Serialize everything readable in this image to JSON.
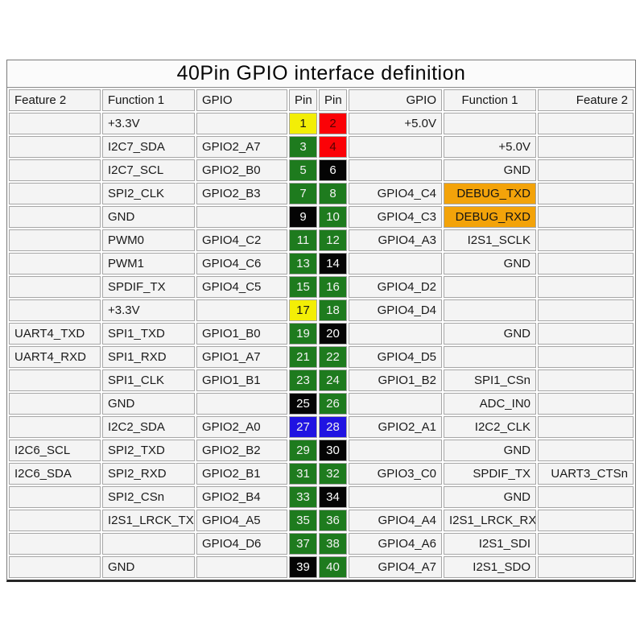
{
  "title": "40Pin GPIO interface definition",
  "header": {
    "feature2_left": "Feature 2",
    "function1_left": "Function 1",
    "gpio_left": "GPIO",
    "pin_left": "Pin",
    "pin_right": "Pin",
    "gpio_right": "GPIO",
    "function1_right": "Function 1",
    "feature2_right": "Feature 2"
  },
  "colors": {
    "cell_bg": "#f4f4f4",
    "grid_line": "#a6a6a6",
    "outer_border": "#7a7a7a",
    "pin_green": {
      "bg": "#1e7b1e",
      "fg": "#f2f2f2"
    },
    "pin_red": {
      "bg": "#fb0207",
      "fg": "#560202"
    },
    "pin_yellow": {
      "bg": "#f3ee06",
      "fg": "#141414"
    },
    "pin_black": {
      "bg": "#040404",
      "fg": "#ffffff"
    },
    "pin_blue": {
      "bg": "#2013e2",
      "fg": "#eeeeee"
    },
    "debug_highlight": {
      "bg": "#f3a30a",
      "fg": "#141414"
    }
  },
  "legend_meaning": {
    "yellow": "+3.3V power",
    "red": "+5.0V power",
    "black": "GND",
    "green": "GPIO",
    "blue": "I2C2",
    "orange": "DEBUG UART"
  },
  "rows": [
    {
      "left": {
        "feature2": "",
        "function1": "+3.3V",
        "gpio": "",
        "pin": "1",
        "color": "yellow"
      },
      "right": {
        "pin": "2",
        "color": "red",
        "gpio": "+5.0V",
        "function1": "",
        "highlight": false,
        "feature2": ""
      }
    },
    {
      "left": {
        "feature2": "",
        "function1": "I2C7_SDA",
        "gpio": "GPIO2_A7",
        "pin": "3",
        "color": "green"
      },
      "right": {
        "pin": "4",
        "color": "red",
        "gpio": "",
        "function1": "+5.0V",
        "highlight": false,
        "feature2": ""
      }
    },
    {
      "left": {
        "feature2": "",
        "function1": "I2C7_SCL",
        "gpio": "GPIO2_B0",
        "pin": "5",
        "color": "green"
      },
      "right": {
        "pin": "6",
        "color": "black",
        "gpio": "",
        "function1": "GND",
        "highlight": false,
        "feature2": ""
      }
    },
    {
      "left": {
        "feature2": "",
        "function1": "SPI2_CLK",
        "gpio": "GPIO2_B3",
        "pin": "7",
        "color": "green"
      },
      "right": {
        "pin": "8",
        "color": "green",
        "gpio": "GPIO4_C4",
        "function1": "DEBUG_TXD",
        "highlight": true,
        "feature2": ""
      }
    },
    {
      "left": {
        "feature2": "",
        "function1": "GND",
        "gpio": "",
        "pin": "9",
        "color": "black"
      },
      "right": {
        "pin": "10",
        "color": "green",
        "gpio": "GPIO4_C3",
        "function1": "DEBUG_RXD",
        "highlight": true,
        "feature2": ""
      }
    },
    {
      "left": {
        "feature2": "",
        "function1": "PWM0",
        "gpio": "GPIO4_C2",
        "pin": "11",
        "color": "green"
      },
      "right": {
        "pin": "12",
        "color": "green",
        "gpio": "GPIO4_A3",
        "function1": "I2S1_SCLK",
        "highlight": false,
        "feature2": ""
      }
    },
    {
      "left": {
        "feature2": "",
        "function1": "PWM1",
        "gpio": "GPIO4_C6",
        "pin": "13",
        "color": "green"
      },
      "right": {
        "pin": "14",
        "color": "black",
        "gpio": "",
        "function1": "GND",
        "highlight": false,
        "feature2": ""
      }
    },
    {
      "left": {
        "feature2": "",
        "function1": "SPDIF_TX",
        "gpio": "GPIO4_C5",
        "pin": "15",
        "color": "green"
      },
      "right": {
        "pin": "16",
        "color": "green",
        "gpio": "GPIO4_D2",
        "function1": "",
        "highlight": false,
        "feature2": ""
      }
    },
    {
      "left": {
        "feature2": "",
        "function1": "+3.3V",
        "gpio": "",
        "pin": "17",
        "color": "yellow"
      },
      "right": {
        "pin": "18",
        "color": "green",
        "gpio": "GPIO4_D4",
        "function1": "",
        "highlight": false,
        "feature2": ""
      }
    },
    {
      "left": {
        "feature2": "UART4_TXD",
        "function1": "SPI1_TXD",
        "gpio": "GPIO1_B0",
        "pin": "19",
        "color": "green"
      },
      "right": {
        "pin": "20",
        "color": "black",
        "gpio": "",
        "function1": "GND",
        "highlight": false,
        "feature2": ""
      }
    },
    {
      "left": {
        "feature2": "UART4_RXD",
        "function1": "SPI1_RXD",
        "gpio": "GPIO1_A7",
        "pin": "21",
        "color": "green"
      },
      "right": {
        "pin": "22",
        "color": "green",
        "gpio": "GPIO4_D5",
        "function1": "",
        "highlight": false,
        "feature2": ""
      }
    },
    {
      "left": {
        "feature2": "",
        "function1": "SPI1_CLK",
        "gpio": "GPIO1_B1",
        "pin": "23",
        "color": "green"
      },
      "right": {
        "pin": "24",
        "color": "green",
        "gpio": "GPIO1_B2",
        "function1": "SPI1_CSn",
        "highlight": false,
        "feature2": ""
      }
    },
    {
      "left": {
        "feature2": "",
        "function1": "GND",
        "gpio": "",
        "pin": "25",
        "color": "black"
      },
      "right": {
        "pin": "26",
        "color": "green",
        "gpio": "",
        "function1": "ADC_IN0",
        "highlight": false,
        "feature2": ""
      }
    },
    {
      "left": {
        "feature2": "",
        "function1": "I2C2_SDA",
        "gpio": "GPIO2_A0",
        "pin": "27",
        "color": "blue"
      },
      "right": {
        "pin": "28",
        "color": "blue",
        "gpio": "GPIO2_A1",
        "function1": "I2C2_CLK",
        "highlight": false,
        "feature2": ""
      }
    },
    {
      "left": {
        "feature2": "I2C6_SCL",
        "function1": "SPI2_TXD",
        "gpio": "GPIO2_B2",
        "pin": "29",
        "color": "green"
      },
      "right": {
        "pin": "30",
        "color": "black",
        "gpio": "",
        "function1": "GND",
        "highlight": false,
        "feature2": ""
      }
    },
    {
      "left": {
        "feature2": "I2C6_SDA",
        "function1": "SPI2_RXD",
        "gpio": "GPIO2_B1",
        "pin": "31",
        "color": "green"
      },
      "right": {
        "pin": "32",
        "color": "green",
        "gpio": "GPIO3_C0",
        "function1": "SPDIF_TX",
        "highlight": false,
        "feature2": "UART3_CTSn"
      }
    },
    {
      "left": {
        "feature2": "",
        "function1": "SPI2_CSn",
        "gpio": "GPIO2_B4",
        "pin": "33",
        "color": "green"
      },
      "right": {
        "pin": "34",
        "color": "black",
        "gpio": "",
        "function1": "GND",
        "highlight": false,
        "feature2": ""
      }
    },
    {
      "left": {
        "feature2": "",
        "function1": "I2S1_LRCK_TX",
        "gpio": "GPIO4_A5",
        "pin": "35",
        "color": "green"
      },
      "right": {
        "pin": "36",
        "color": "green",
        "gpio": "GPIO4_A4",
        "function1": "I2S1_LRCK_RX",
        "highlight": false,
        "feature2": ""
      }
    },
    {
      "left": {
        "feature2": "",
        "function1": "",
        "gpio": "GPIO4_D6",
        "pin": "37",
        "color": "green"
      },
      "right": {
        "pin": "38",
        "color": "green",
        "gpio": "GPIO4_A6",
        "function1": "I2S1_SDI",
        "highlight": false,
        "feature2": ""
      }
    },
    {
      "left": {
        "feature2": "",
        "function1": "GND",
        "gpio": "",
        "pin": "39",
        "color": "black"
      },
      "right": {
        "pin": "40",
        "color": "green",
        "gpio": "GPIO4_A7",
        "function1": "I2S1_SDO",
        "highlight": false,
        "feature2": ""
      }
    }
  ]
}
